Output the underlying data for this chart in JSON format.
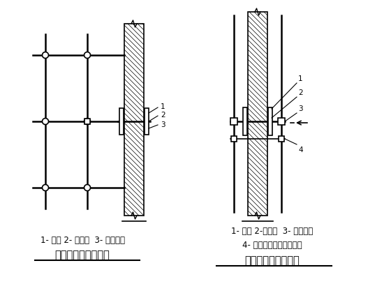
{
  "bg_color": "#ffffff",
  "line_color": "#000000",
  "title1": "双排脚手架（平面）",
  "title2": "门窗洞口处的连墙点",
  "label1_left": "1- 垫木 2- 短钢管  3- 直角扣件",
  "label1_right": "1- 垫木 2-短钢管  3- 直角扣件",
  "label2_right": "4- 连向立柱或横向水平杆",
  "font_size_label": 8.5,
  "font_size_title": 10.5,
  "font_size_num": 7.5
}
